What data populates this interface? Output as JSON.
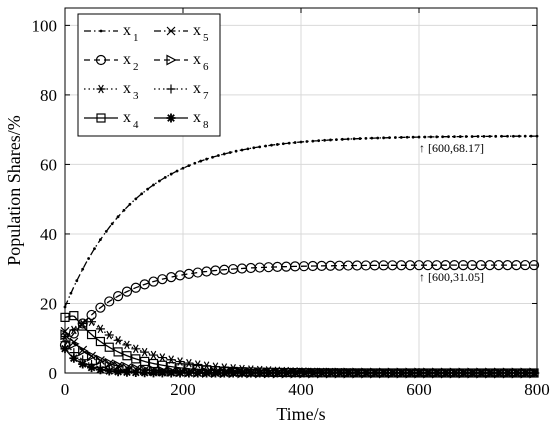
{
  "chart_data": {
    "type": "line",
    "xlabel": "Time/s",
    "ylabel": "Population Shares/%",
    "xlim": [
      0,
      800
    ],
    "ylim": [
      0,
      105
    ],
    "xticks": [
      0,
      200,
      400,
      600,
      800
    ],
    "yticks": [
      0,
      20,
      40,
      60,
      80,
      100
    ],
    "grid": true,
    "legend_placement": "top-left",
    "line_color": "#000000",
    "series": [
      {
        "name": "x",
        "sub": "1",
        "dash": "dashdot",
        "marker": "dot",
        "start": 19,
        "end": 68.2,
        "peak": 0,
        "peak_t": 0,
        "tau": 120
      },
      {
        "name": "x",
        "sub": "2",
        "dash": "dashed",
        "marker": "circle",
        "start": 8,
        "end": 31.05,
        "peak": 0,
        "peak_t": 0,
        "tau": 95
      },
      {
        "name": "x",
        "sub": "3",
        "dash": "dotted",
        "marker": "asterisk",
        "start": 10.5,
        "end": 0,
        "peak": 15.5,
        "peak_t": 40,
        "tau": 100
      },
      {
        "name": "x",
        "sub": "4",
        "dash": "solid",
        "marker": "square",
        "start": 16,
        "end": 0,
        "peak": 16.5,
        "peak_t": 15,
        "tau": 75
      },
      {
        "name": "x",
        "sub": "5",
        "dash": "dashdot",
        "marker": "x",
        "start": 12,
        "end": 0,
        "peak": 0,
        "peak_t": 0,
        "tau": 50
      },
      {
        "name": "x",
        "sub": "6",
        "dash": "dashed",
        "marker": "triangle",
        "start": 11,
        "end": 0,
        "peak": 0,
        "peak_t": 0,
        "tau": 55
      },
      {
        "name": "x",
        "sub": "7",
        "dash": "dotted",
        "marker": "plus",
        "start": 9,
        "end": 0,
        "peak": 0,
        "peak_t": 0,
        "tau": 35
      },
      {
        "name": "x",
        "sub": "8",
        "dash": "solid",
        "marker": "star",
        "start": 7,
        "end": 0,
        "peak": 0,
        "peak_t": 0,
        "tau": 30
      }
    ],
    "annotations": [
      {
        "text": "↑ [600,68.17]",
        "x": 600,
        "y": 68.17
      },
      {
        "text": "↑ [600,31.05]",
        "x": 600,
        "y": 31.05
      }
    ]
  }
}
